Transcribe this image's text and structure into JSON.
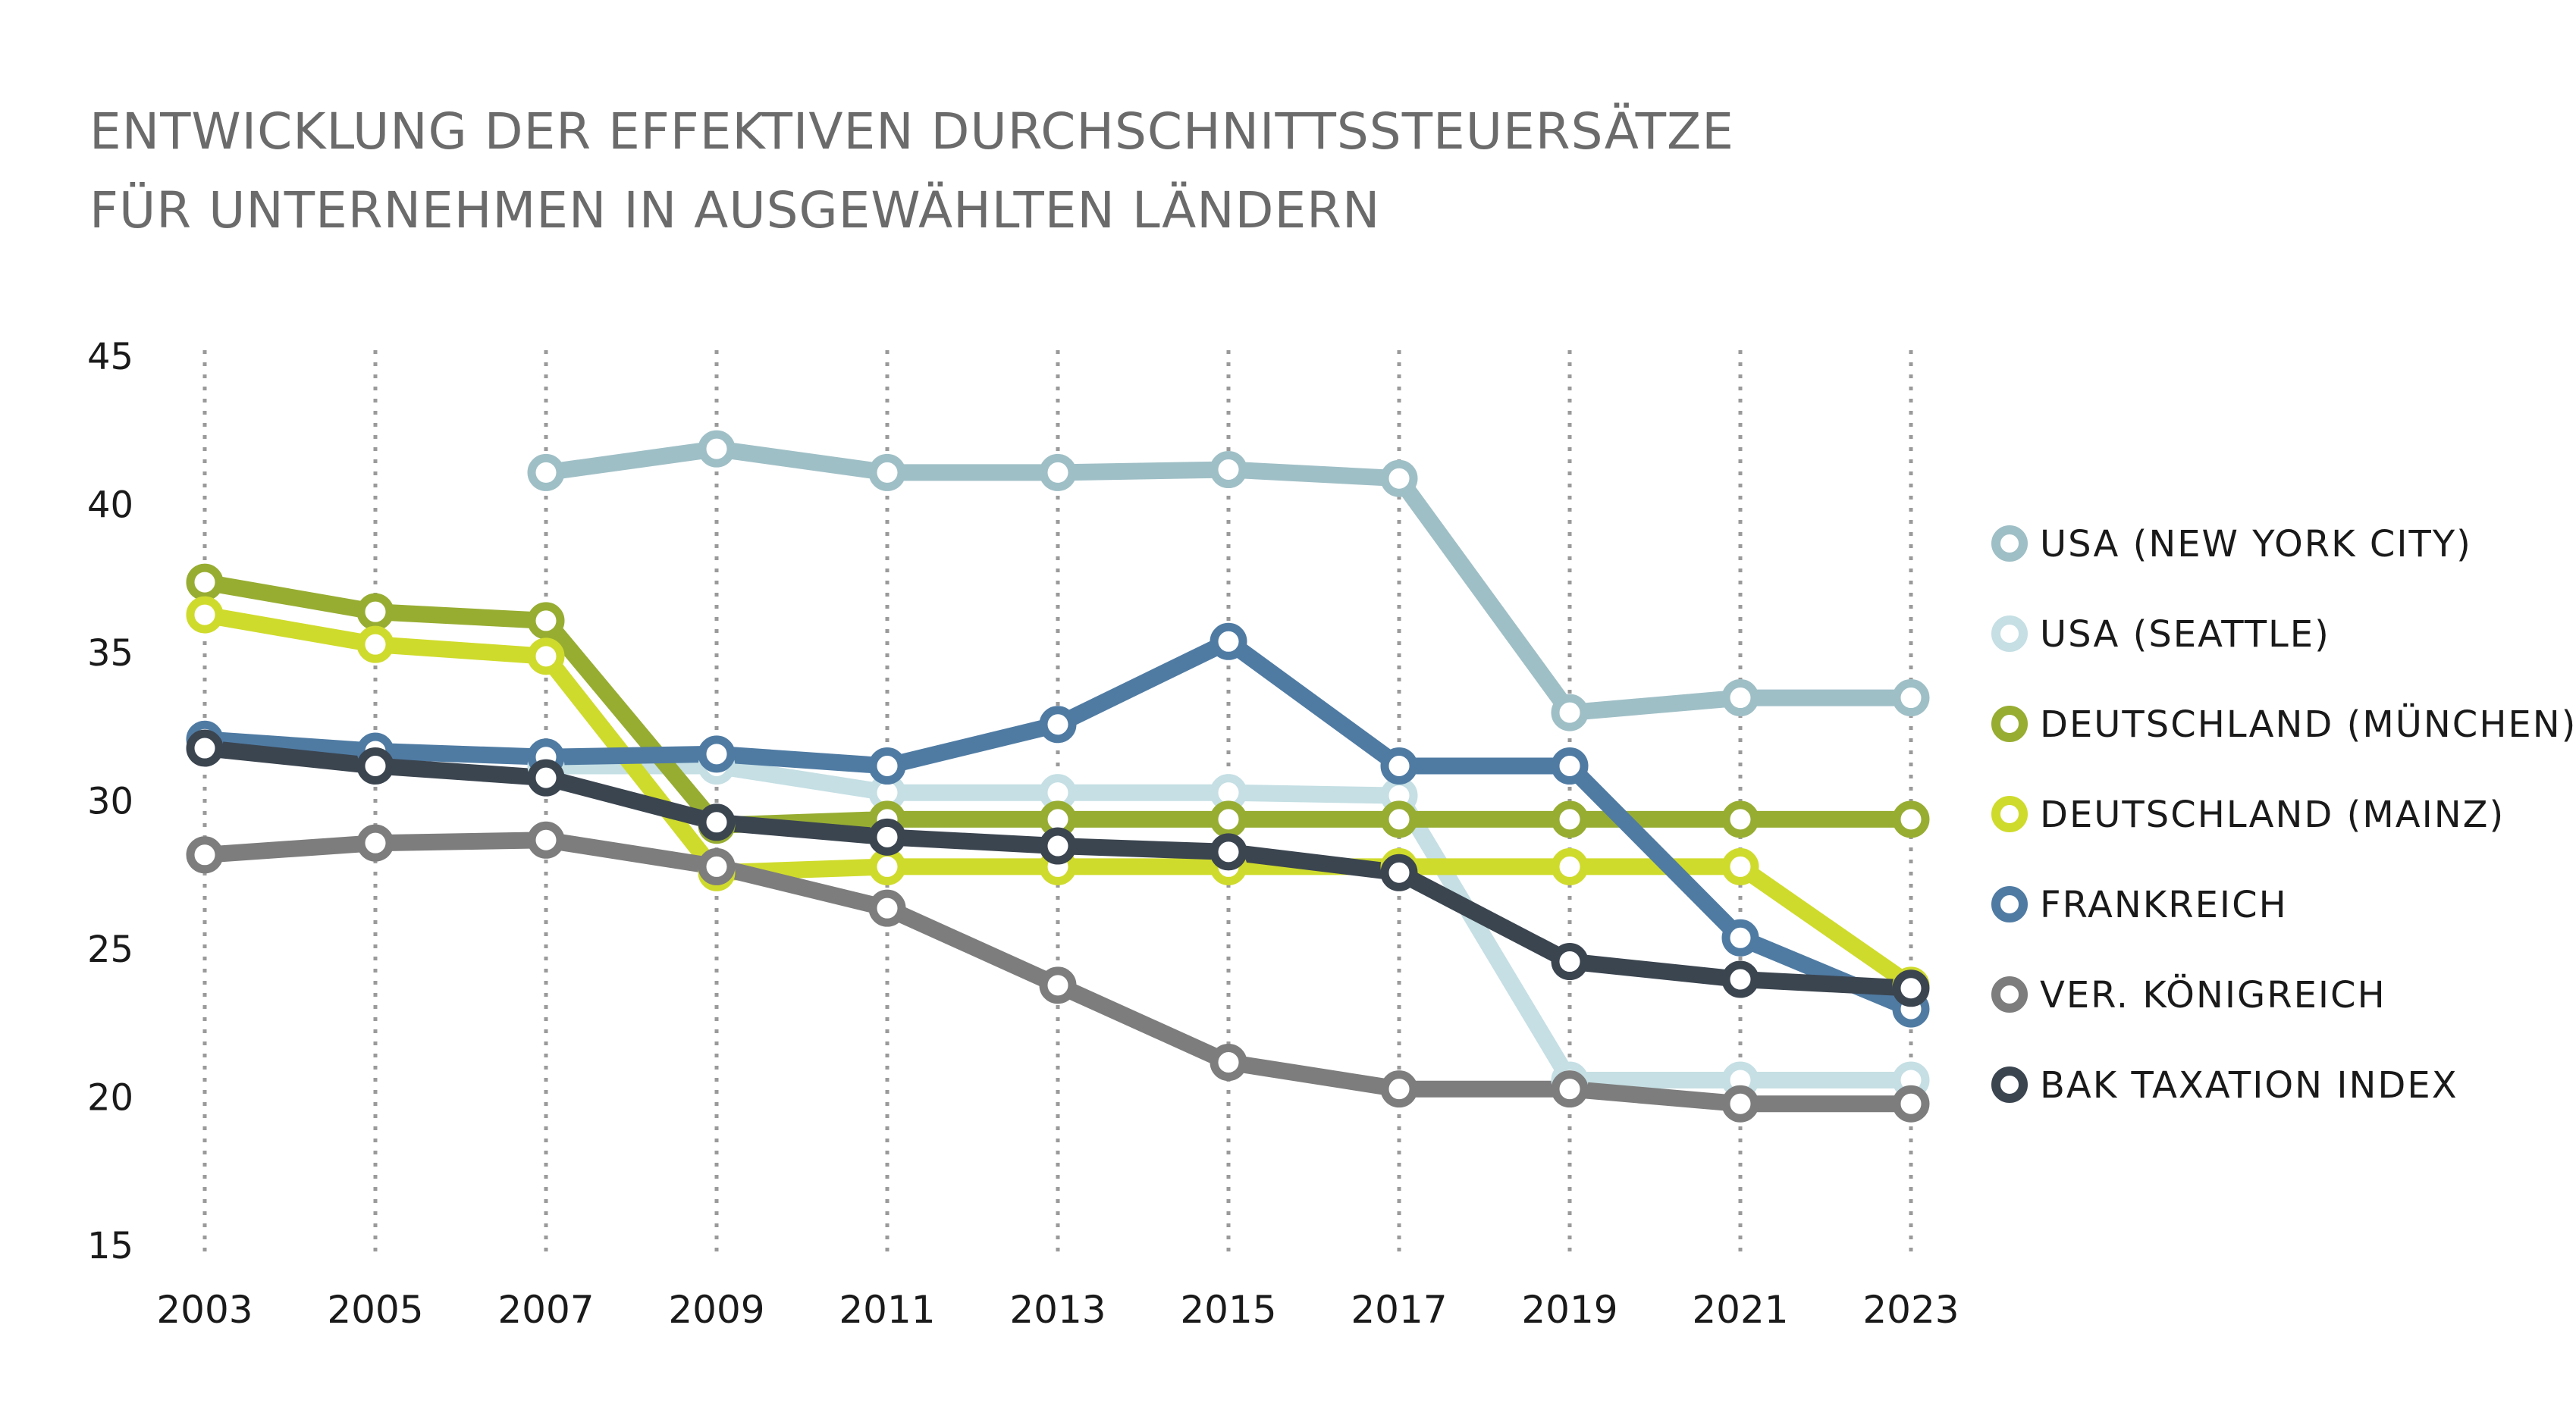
{
  "chart_data": {
    "type": "line",
    "title_lines": [
      "ENTWICKLUNG DER EFFEKTIVEN DURCHSCHNITTSSTEUERSÄTZE",
      "FÜR UNTERNEHMEN IN AUSGEWÄHLTEN LÄNDERN"
    ],
    "x": [
      "2003",
      "2005",
      "2007",
      "2009",
      "2011",
      "2013",
      "2015",
      "2017",
      "2019",
      "2021",
      "2023"
    ],
    "ylim": [
      15,
      45
    ],
    "yticks": [
      "15",
      "20",
      "25",
      "30",
      "35",
      "40",
      "45"
    ],
    "grid": "vertical dotted lines at each year",
    "legend_position": "right",
    "series": [
      {
        "name": "USA (NEW YORK CITY)",
        "color": "#9fbfc6",
        "values": [
          null,
          null,
          41.0,
          41.8,
          41.0,
          41.0,
          41.1,
          40.8,
          32.9,
          33.4,
          33.4
        ]
      },
      {
        "name": "USA (SEATTLE)",
        "color": "#c5dfe4",
        "values": [
          null,
          null,
          31.1,
          31.1,
          30.2,
          30.2,
          30.2,
          30.1,
          20.5,
          20.5,
          20.5
        ]
      },
      {
        "name": "DEUTSCHLAND (MÜNCHEN)",
        "color": "#97ad32",
        "values": [
          37.3,
          36.3,
          36.0,
          29.1,
          29.3,
          29.3,
          29.3,
          29.3,
          29.3,
          29.3,
          29.3
        ]
      },
      {
        "name": "DEUTSCHLAND (MAINZ)",
        "color": "#cfdb2c",
        "values": [
          36.2,
          35.2,
          34.8,
          27.5,
          27.7,
          27.7,
          27.7,
          27.7,
          27.7,
          27.7,
          23.7
        ]
      },
      {
        "name": "FRANKREICH",
        "color": "#4f7ba3",
        "values": [
          32.0,
          31.6,
          31.4,
          31.5,
          31.1,
          32.5,
          35.3,
          31.1,
          31.1,
          25.3,
          22.9
        ]
      },
      {
        "name": "VER. KÖNIGREICH",
        "color": "#7d7d7d",
        "values": [
          28.1,
          28.5,
          28.6,
          27.7,
          26.3,
          23.7,
          21.1,
          20.2,
          20.2,
          19.7,
          19.7
        ]
      },
      {
        "name": "BAK TAXATION INDEX",
        "color": "#3b4550",
        "values": [
          31.7,
          31.1,
          30.7,
          29.2,
          28.7,
          28.4,
          28.2,
          27.5,
          24.5,
          23.9,
          23.6
        ]
      }
    ]
  }
}
